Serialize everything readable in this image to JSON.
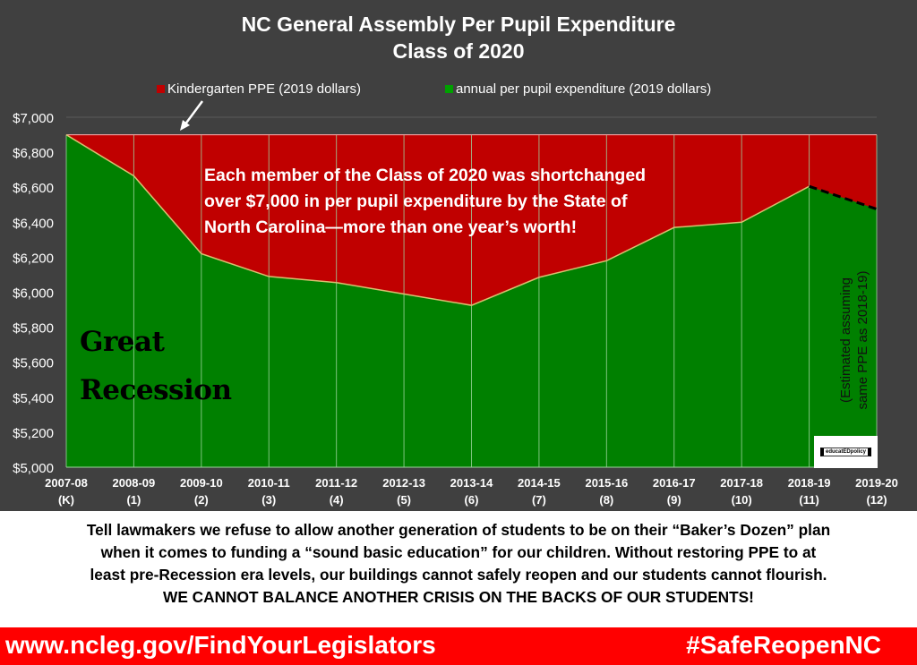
{
  "chart_data": {
    "type": "area",
    "title": "NC General Assembly Per Pupil Expenditure",
    "subtitle": "Class of 2020",
    "categories": [
      "2007-08\n(K)",
      "2008-09\n(1)",
      "2009-10\n(2)",
      "2010-11\n(3)",
      "2011-12\n(4)",
      "2012-13\n(5)",
      "2013-14\n(6)",
      "2014-15\n(7)",
      "2015-16\n(8)",
      "2016-17\n(9)",
      "2017-18\n(10)",
      "2018-19\n(11)",
      "2019-20\n(12)"
    ],
    "series": [
      {
        "name": "Kindergarten PPE (2019 dollars)",
        "color": "#c00000",
        "values": [
          6900,
          6900,
          6900,
          6900,
          6900,
          6900,
          6900,
          6900,
          6900,
          6900,
          6900,
          6900,
          6900
        ]
      },
      {
        "name": "annual per pupil expenditure (2019 dollars)",
        "color": "#008000",
        "values": [
          6900,
          6665,
          6220,
          6090,
          6055,
          5990,
          5925,
          6085,
          6180,
          6370,
          6400,
          6605,
          6475
        ],
        "estimated_last_segment": true
      }
    ],
    "ylim": [
      5000,
      7000
    ],
    "yticks": [
      "$5,000",
      "$5,200",
      "$5,400",
      "$5,600",
      "$5,800",
      "$6,000",
      "$6,200",
      "$6,400",
      "$6,600",
      "$6,800",
      "$7,000"
    ],
    "grid": "vertical lines",
    "legend": "top",
    "annotations": {
      "callout": [
        "Each member of the Class of 2020 was shortchanged",
        "over $7,000 in per pupil expenditure by the State of",
        "North Carolina—more than one year’s worth!"
      ],
      "recession": [
        "Great",
        "Recession"
      ],
      "estimate": [
        "(Estimated assuming",
        "same PPE as 2018-19)"
      ]
    }
  },
  "logo_text": "educatEDpolicy",
  "message": [
    "Tell lawmakers we refuse to allow another generation of students to be on their “Baker’s Dozen” plan",
    "when it comes to funding a “sound basic education” for our children.  Without restoring PPE to at",
    "least pre-Recession era levels, our buildings cannot safely reopen and our students cannot flourish.",
    "WE CANNOT BALANCE ANOTHER CRISIS ON THE BACKS OF OUR STUDENTS!"
  ],
  "banner": {
    "link": "www.ncleg.gov/FindYourLegislators",
    "hashtag": "#SafeReopenNC"
  }
}
